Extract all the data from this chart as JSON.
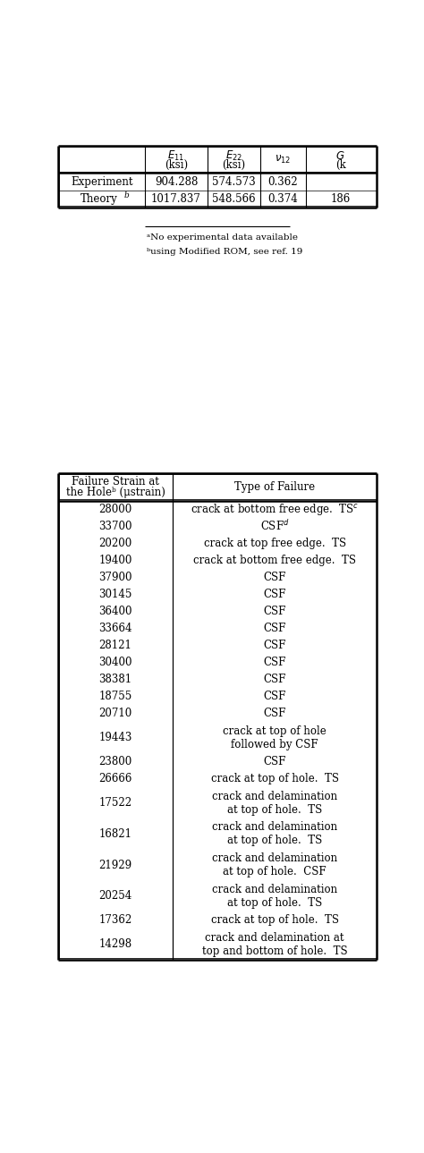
{
  "background_color": "#ffffff",
  "table1": {
    "col_bounds": [
      0.02,
      0.28,
      0.47,
      0.63,
      0.77,
      0.98
    ],
    "rows": [
      [
        "Experiment",
        "904.288",
        "574.573",
        "0.362",
        ""
      ],
      [
        "Theory",
        "1017.837",
        "548.566",
        "0.374",
        "186"
      ]
    ]
  },
  "footnotes": [
    "ᵃNo experimental data available",
    "ᵇusing Modified ROM, see ref. 19"
  ],
  "table2": {
    "col_split": 0.365,
    "col1_header_line1": "Failure Strain at",
    "col1_header_line2": "the Holeᵇ (μstrain)",
    "col2_header": "Type of Failure",
    "rows": [
      [
        "28000",
        "crack at bottom free edge.  TS",
        "c",
        ""
      ],
      [
        "33700",
        "CSF",
        "d",
        ""
      ],
      [
        "20200",
        "crack at top free edge.  TS",
        "",
        ""
      ],
      [
        "19400",
        "crack at bottom free edge.  TS",
        "",
        ""
      ],
      [
        "37900",
        "CSF",
        "",
        ""
      ],
      [
        "30145",
        "CSF",
        "",
        ""
      ],
      [
        "36400",
        "CSF",
        "",
        ""
      ],
      [
        "33664",
        "CSF",
        "",
        ""
      ],
      [
        "28121",
        "CSF",
        "",
        ""
      ],
      [
        "30400",
        "CSF",
        "",
        ""
      ],
      [
        "38381",
        "CSF",
        "",
        ""
      ],
      [
        "18755",
        "CSF",
        "",
        ""
      ],
      [
        "20710",
        "CSF",
        "",
        ""
      ],
      [
        "19443",
        "crack at top of hole\nfollowed by CSF",
        "",
        ""
      ],
      [
        "23800",
        "CSF",
        "",
        ""
      ],
      [
        "26666",
        "crack at top of hole.  TS",
        "",
        ""
      ],
      [
        "17522",
        "crack and delamination\nat top of hole.  TS",
        "",
        ""
      ],
      [
        "16821",
        "crack and delamination\nat top of hole.  TS",
        "",
        ""
      ],
      [
        "21929",
        "crack and delamination\nat top of hole.  CSF",
        "",
        ""
      ],
      [
        "20254",
        "crack and delamination\nat top of hole.  TS",
        "",
        ""
      ],
      [
        "17362",
        "crack at top of hole.  TS",
        "",
        ""
      ],
      [
        "14298",
        "crack and delamination at\ntop and bottom of hole.  TS",
        "",
        ""
      ]
    ]
  }
}
